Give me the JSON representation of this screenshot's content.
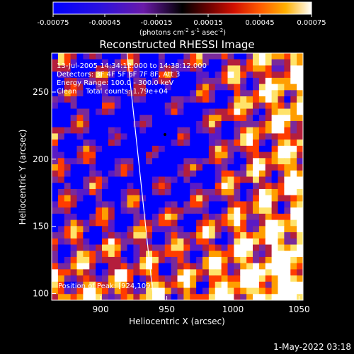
{
  "colorbar": {
    "ticks": [
      "-0.00075",
      "-0.00045",
      "-0.00015",
      "0.00015",
      "0.00045",
      "0.00075"
    ],
    "units_main": "(photons cm",
    "units_exp1": "-2",
    "units_mid": " s",
    "units_exp2": "-1",
    "units_end": " asec",
    "units_exp3": "-2",
    "units_close": ")"
  },
  "annotations": {
    "time_range": "13-Jul-2005 14:34:12.000 to 14:38:12.000",
    "detectors": "Detectors: 3F 4F 5F 6F 7F 8F, Att 3",
    "energy": "Energy Range: 100.0 - 300.0 keV",
    "clean": "Clean    Total counts: 1.79e+04",
    "peak": "Position of Peak: [924,109]"
  },
  "footer_timestamp": "1-May-2022 03:18",
  "chart_data": {
    "type": "heatmap",
    "title": "Reconstructed RHESSI Image",
    "xlabel": "Heliocentric X (arcsec)",
    "ylabel": "Heliocentric Y (arcsec)",
    "xlim": [
      863,
      1053
    ],
    "ylim": [
      95,
      279
    ],
    "x_ticks": [
      900,
      950,
      1000,
      1050
    ],
    "y_ticks": [
      100,
      150,
      200,
      250
    ],
    "colorbar_range": [
      -0.00075,
      0.00075
    ],
    "peak_position": [
      924,
      109
    ],
    "limb_line": [
      [
        920,
        279
      ],
      [
        940,
        95
      ]
    ],
    "grid": false,
    "colormap": [
      "#0000ff",
      "#5a1bc4",
      "#7a2a9a",
      "#b41e3c",
      "#ff3c00",
      "#ff9e00",
      "#ffe36a",
      "#ffffff"
    ]
  }
}
